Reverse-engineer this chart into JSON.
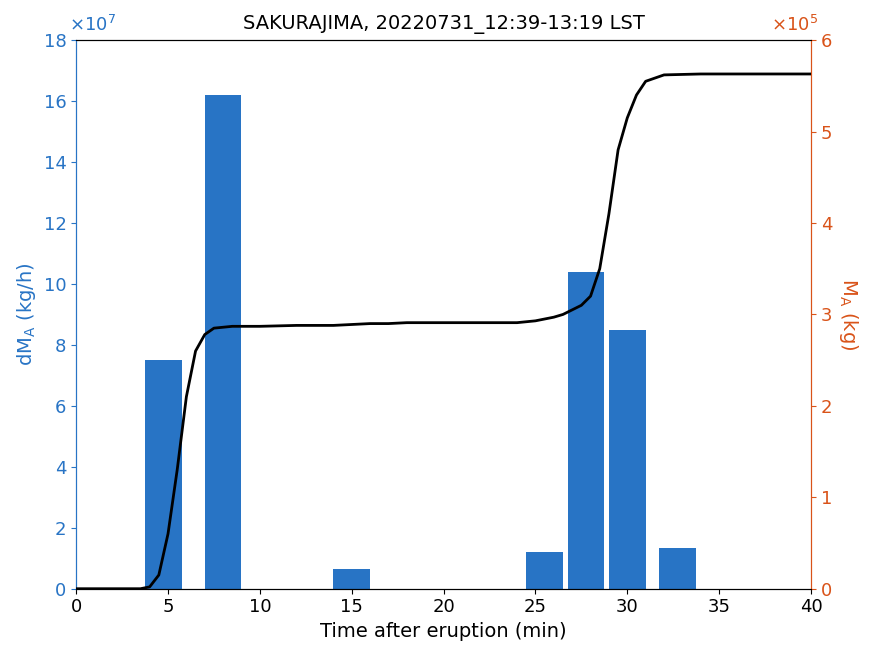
{
  "title": "SAKURAJIMA, 20220731_12:39-13:19 LST",
  "xlabel": "Time after eruption (min)",
  "ylabel_left": "dM\\u2090 (kg/h)",
  "ylabel_right": "M\\u2090 (kg)",
  "bar_color": "#2874C5",
  "line_color": "#000000",
  "left_axis_color": "#2874C5",
  "right_axis_color": "#D95319",
  "xlim": [
    0,
    40
  ],
  "ylim_left": [
    0,
    180000000.0
  ],
  "ylim_right": [
    0,
    600000.0
  ],
  "left_yticks": [
    0,
    2,
    4,
    6,
    8,
    10,
    12,
    14,
    16,
    18
  ],
  "left_ytick_scale": 10000000.0,
  "right_yticks": [
    0,
    1,
    2,
    3,
    4,
    5,
    6
  ],
  "right_ytick_scale": 100000.0,
  "xticks": [
    0,
    5,
    10,
    15,
    20,
    25,
    30,
    35,
    40
  ],
  "bar_centers": [
    4.75,
    8.0,
    15.0,
    25.5,
    27.75,
    30.0,
    32.75
  ],
  "bar_heights": [
    75000000.0,
    162000000.0,
    6500000.0,
    12000000.0,
    104000000.0,
    85000000.0,
    13500000.0
  ],
  "bar_width": 2.0,
  "line_x": [
    0,
    3.5,
    4.0,
    4.5,
    5.0,
    5.5,
    6.0,
    6.5,
    7.0,
    7.5,
    8.0,
    8.5,
    9.0,
    10,
    12,
    14,
    15,
    16,
    17,
    18,
    20,
    22,
    24,
    24.5,
    25.0,
    25.5,
    26.0,
    26.5,
    27.0,
    27.5,
    28.0,
    28.5,
    29.0,
    29.5,
    30.0,
    30.5,
    31.0,
    32,
    34,
    36,
    38,
    40
  ],
  "line_y": [
    0,
    0,
    2000.0,
    15000.0,
    60000.0,
    130000.0,
    210000.0,
    260000.0,
    278000.0,
    285000.0,
    286000.0,
    287000.0,
    287000.0,
    287000.0,
    288000.0,
    288000.0,
    289000.0,
    290000.0,
    290000.0,
    291000.0,
    291000.0,
    291000.0,
    291000.0,
    292000.0,
    293000.0,
    295000.0,
    297000.0,
    300000.0,
    305000.0,
    310000.0,
    320000.0,
    350000.0,
    410000.0,
    480000.0,
    515000.0,
    540000.0,
    555000.0,
    562000.0,
    563000.0,
    563000.0,
    563000.0,
    563000.0
  ]
}
